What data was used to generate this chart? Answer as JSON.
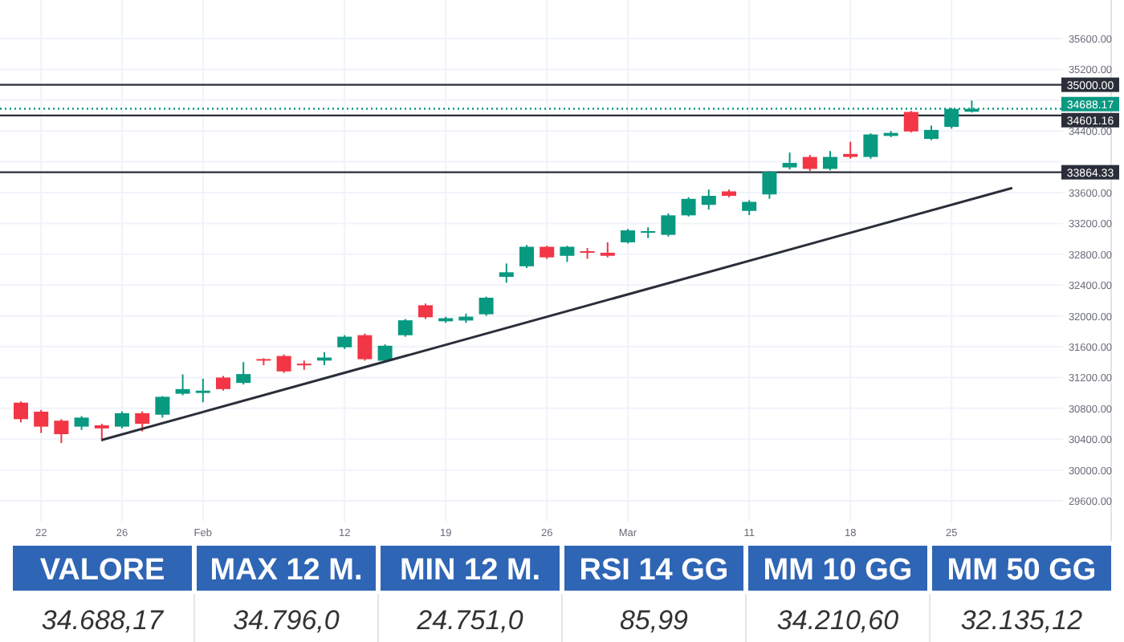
{
  "chart_data": [
    {
      "type": "candlestick",
      "categories": [
        null,
        "22",
        null,
        null,
        null,
        "26",
        null,
        null,
        null,
        "Feb",
        null,
        null,
        null,
        null,
        null,
        null,
        "12",
        null,
        null,
        null,
        null,
        "19",
        null,
        null,
        null,
        null,
        "26",
        null,
        null,
        null,
        "Mar",
        null,
        null,
        null,
        null,
        null,
        "11",
        null,
        null,
        null,
        null,
        "18",
        null,
        null,
        null,
        null,
        "25",
        null,
        null,
        null
      ],
      "ohlc": [
        [
          30874,
          30890,
          30620,
          30660
        ],
        [
          30757,
          30780,
          30480,
          30563
        ],
        [
          30640,
          30660,
          30350,
          30465
        ],
        [
          30563,
          30700,
          30520,
          30680
        ],
        [
          30580,
          30600,
          30370,
          30540
        ],
        [
          30563,
          30760,
          30540,
          30737
        ],
        [
          30737,
          30760,
          30500,
          30600
        ],
        [
          30718,
          30960,
          30680,
          30950
        ],
        [
          30990,
          31240,
          30970,
          31050
        ],
        [
          31000,
          31185,
          30880,
          31030
        ],
        [
          31200,
          31220,
          31030,
          31050
        ],
        [
          31130,
          31400,
          31110,
          31245
        ],
        [
          31440,
          31450,
          31360,
          31420
        ],
        [
          31480,
          31500,
          31260,
          31280
        ],
        [
          31380,
          31420,
          31300,
          31360
        ],
        [
          31420,
          31530,
          31360,
          31460
        ],
        [
          31593,
          31750,
          31570,
          31730
        ],
        [
          31750,
          31770,
          31420,
          31438
        ],
        [
          31418,
          31630,
          31400,
          31613
        ],
        [
          31749,
          31960,
          31730,
          31943
        ],
        [
          32138,
          32160,
          31960,
          31982
        ],
        [
          31930,
          31990,
          31910,
          31970
        ],
        [
          31940,
          32030,
          31910,
          31990
        ],
        [
          32021,
          32250,
          32000,
          32236
        ],
        [
          32507,
          32680,
          32430,
          32566
        ],
        [
          32644,
          32920,
          32620,
          32897
        ],
        [
          32897,
          32910,
          32740,
          32760
        ],
        [
          32780,
          32910,
          32700,
          32897
        ],
        [
          32840,
          32880,
          32740,
          32820
        ],
        [
          32820,
          32955,
          32760,
          32780
        ],
        [
          32955,
          33130,
          32940,
          33110
        ],
        [
          33080,
          33150,
          33010,
          33100
        ],
        [
          33052,
          33330,
          33030,
          33305
        ],
        [
          33305,
          33540,
          33290,
          33519
        ],
        [
          33441,
          33640,
          33380,
          33558
        ],
        [
          33616,
          33640,
          33540,
          33558
        ],
        [
          33363,
          33500,
          33310,
          33480
        ],
        [
          33577,
          33880,
          33520,
          33870
        ],
        [
          33927,
          34120,
          33900,
          33985
        ],
        [
          34063,
          34090,
          33880,
          33908
        ],
        [
          33908,
          34140,
          33890,
          34063
        ],
        [
          34102,
          34260,
          34040,
          34063
        ],
        [
          34063,
          34370,
          34040,
          34355
        ],
        [
          34336,
          34400,
          34320,
          34375
        ],
        [
          34647,
          34660,
          34380,
          34394
        ],
        [
          34297,
          34470,
          34280,
          34414
        ],
        [
          34453,
          34700,
          34430,
          34686
        ],
        [
          34650,
          34796,
          34640,
          34688.17
        ],
        null,
        null
      ],
      "colors": [
        "#f23645",
        "#f23645",
        "#f23645",
        "#089981",
        "#f23645",
        "#089981",
        "#f23645",
        "#089981",
        "#089981",
        "#089981",
        "#f23645",
        "#089981",
        "#f23645",
        "#f23645",
        "#f23645",
        "#089981",
        "#089981",
        "#f23645",
        "#089981",
        "#089981",
        "#f23645",
        "#089981",
        "#089981",
        "#089981",
        "#089981",
        "#089981",
        "#f23645",
        "#089981",
        "#f23645",
        "#f23645",
        "#089981",
        "#089981",
        "#089981",
        "#089981",
        "#089981",
        "#f23645",
        "#089981",
        "#089981",
        "#089981",
        "#f23645",
        "#089981",
        "#f23645",
        "#089981",
        "#089981",
        "#f23645",
        "#089981",
        "#089981",
        "#089981",
        null,
        null
      ],
      "series": [
        {
          "type": "line",
          "color": "#2a2e39",
          "values": [
            null,
            null,
            null,
            null,
            30390,
            null,
            null,
            null,
            null,
            null,
            null,
            null,
            null,
            null,
            null,
            null,
            null,
            null,
            null,
            null,
            null,
            null,
            null,
            null,
            null,
            null,
            null,
            null,
            null,
            null,
            null,
            null,
            null,
            null,
            null,
            null,
            null,
            null,
            null,
            null,
            null,
            null,
            null,
            null,
            null,
            null,
            null,
            null,
            null,
            33660
          ]
        }
      ],
      "ylim": [
        29330,
        36100
      ],
      "yticks": [
        {
          "value": 29600,
          "label": "29600.00"
        },
        {
          "value": 30000,
          "label": "30000.00"
        },
        {
          "value": 30400,
          "label": "30400.00"
        },
        {
          "value": 30800,
          "label": "30800.00"
        },
        {
          "value": 31200,
          "label": "31200.00"
        },
        {
          "value": 31600,
          "label": "31600.00"
        },
        {
          "value": 32000,
          "label": "32000.00"
        },
        {
          "value": 32400,
          "label": "32400.00"
        },
        {
          "value": 32800,
          "label": "32800.00"
        },
        {
          "value": 33200,
          "label": "33200.00"
        },
        {
          "value": 33600,
          "label": "33600.00"
        },
        {
          "value": 34000,
          "label": null
        },
        {
          "value": 34400,
          "label": "34400.00"
        },
        {
          "value": 34800,
          "label": null
        },
        {
          "value": 35200,
          "label": "35200.00"
        },
        {
          "value": 35600,
          "label": "35600.00"
        }
      ],
      "grid": true,
      "ref_lines": [
        {
          "axis": "y",
          "value": 35000,
          "label": "35000.00",
          "color": "#2a2e39"
        },
        {
          "axis": "y",
          "value": 34688.17,
          "label": "34688.17",
          "color": "#089981",
          "line_style": "dotted"
        },
        {
          "axis": "y",
          "value": 34601.16,
          "label": "34601.16",
          "color": "#2a2e39"
        },
        {
          "axis": "y",
          "value": 33864.33,
          "label": "33864.33",
          "color": "#2a2e39"
        }
      ]
    },
    {
      "type": "other",
      "categories": [
        "VALORE",
        "MAX 12 M.",
        "MIN 12 M.",
        "RSI 14 GG",
        "MM 10 GG",
        "MM 50 GG"
      ],
      "value_labels": [
        "34.688,17",
        "34.796,0",
        "24.751,0",
        "85,99",
        "34.210,60",
        "32.135,12"
      ],
      "color": "#2f65b5"
    }
  ]
}
